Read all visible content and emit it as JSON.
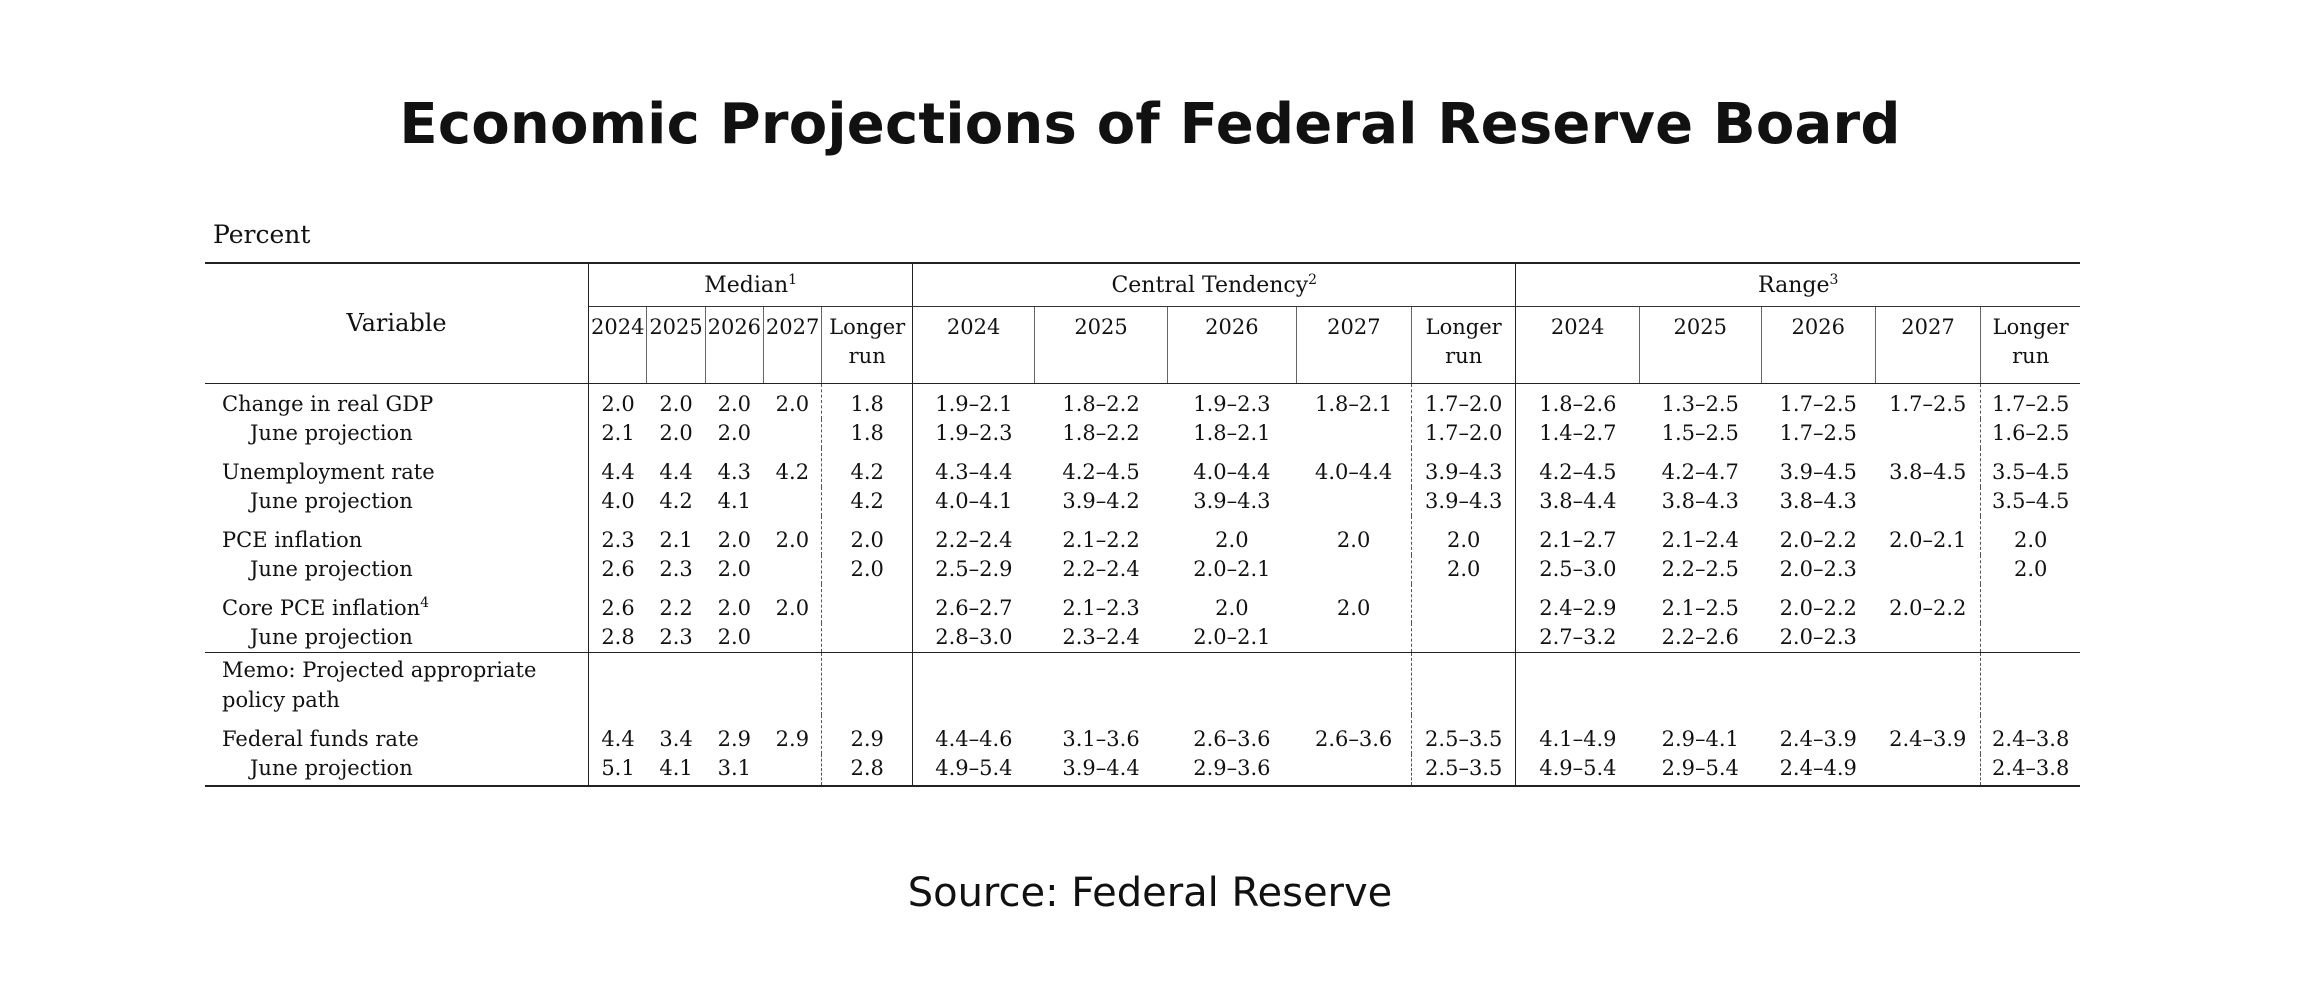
{
  "title": "Economic Projections of Federal Reserve Board",
  "units": "Percent",
  "source": "Source: Federal Reserve",
  "header": {
    "variable": "Variable",
    "groups": [
      {
        "label": "Median",
        "note": "1"
      },
      {
        "label": "Central Tendency",
        "note": "2"
      },
      {
        "label": "Range",
        "note": "3"
      }
    ],
    "years": [
      "2024",
      "2025",
      "2026",
      "2027"
    ],
    "longer_run": [
      "Longer",
      "run"
    ]
  },
  "rows": [
    {
      "label": "Change in real GDP",
      "note": "",
      "median": [
        "2.0",
        "2.0",
        "2.0",
        "2.0",
        "1.8"
      ],
      "central": [
        "1.9–2.1",
        "1.8–2.2",
        "1.9–2.3",
        "1.8–2.1",
        "1.7–2.0"
      ],
      "range": [
        "1.8–2.6",
        "1.3–2.5",
        "1.7–2.5",
        "1.7–2.5",
        "1.7–2.5"
      ]
    },
    {
      "label": "June projection",
      "note": "",
      "median": [
        "2.1",
        "2.0",
        "2.0",
        "",
        "1.8"
      ],
      "central": [
        "1.9–2.3",
        "1.8–2.2",
        "1.8–2.1",
        "",
        "1.7–2.0"
      ],
      "range": [
        "1.4–2.7",
        "1.5–2.5",
        "1.7–2.5",
        "",
        "1.6–2.5"
      ]
    },
    {
      "label": "Unemployment rate",
      "note": "",
      "median": [
        "4.4",
        "4.4",
        "4.3",
        "4.2",
        "4.2"
      ],
      "central": [
        "4.3–4.4",
        "4.2–4.5",
        "4.0–4.4",
        "4.0–4.4",
        "3.9–4.3"
      ],
      "range": [
        "4.2–4.5",
        "4.2–4.7",
        "3.9–4.5",
        "3.8–4.5",
        "3.5–4.5"
      ]
    },
    {
      "label": "June projection",
      "note": "",
      "median": [
        "4.0",
        "4.2",
        "4.1",
        "",
        "4.2"
      ],
      "central": [
        "4.0–4.1",
        "3.9–4.2",
        "3.9–4.3",
        "",
        "3.9–4.3"
      ],
      "range": [
        "3.8–4.4",
        "3.8–4.3",
        "3.8–4.3",
        "",
        "3.5–4.5"
      ]
    },
    {
      "label": "PCE inflation",
      "note": "",
      "median": [
        "2.3",
        "2.1",
        "2.0",
        "2.0",
        "2.0"
      ],
      "central": [
        "2.2–2.4",
        "2.1–2.2",
        "2.0",
        "2.0",
        "2.0"
      ],
      "range": [
        "2.1–2.7",
        "2.1–2.4",
        "2.0–2.2",
        "2.0–2.1",
        "2.0"
      ]
    },
    {
      "label": "June projection",
      "note": "",
      "median": [
        "2.6",
        "2.3",
        "2.0",
        "",
        "2.0"
      ],
      "central": [
        "2.5–2.9",
        "2.2–2.4",
        "2.0–2.1",
        "",
        "2.0"
      ],
      "range": [
        "2.5–3.0",
        "2.2–2.5",
        "2.0–2.3",
        "",
        "2.0"
      ]
    },
    {
      "label": "Core PCE inflation",
      "note": "4",
      "median": [
        "2.6",
        "2.2",
        "2.0",
        "2.0",
        ""
      ],
      "central": [
        "2.6–2.7",
        "2.1–2.3",
        "2.0",
        "2.0",
        ""
      ],
      "range": [
        "2.4–2.9",
        "2.1–2.5",
        "2.0–2.2",
        "2.0–2.2",
        ""
      ]
    },
    {
      "label": "June projection",
      "note": "",
      "median": [
        "2.8",
        "2.3",
        "2.0",
        "",
        ""
      ],
      "central": [
        "2.8–3.0",
        "2.3–2.4",
        "2.0–2.1",
        "",
        ""
      ],
      "range": [
        "2.7–3.2",
        "2.2–2.6",
        "2.0–2.3",
        "",
        ""
      ]
    },
    {
      "label": "Memo: Projected appropriate policy path",
      "note": "",
      "median": [
        "",
        "",
        "",
        "",
        ""
      ],
      "central": [
        "",
        "",
        "",
        "",
        ""
      ],
      "range": [
        "",
        "",
        "",
        "",
        ""
      ]
    },
    {
      "label": "Federal funds rate",
      "note": "",
      "median": [
        "4.4",
        "3.4",
        "2.9",
        "2.9",
        "2.9"
      ],
      "central": [
        "4.4–4.6",
        "3.1–3.6",
        "2.6–3.6",
        "2.6–3.6",
        "2.5–3.5"
      ],
      "range": [
        "4.1–4.9",
        "2.9–4.1",
        "2.4–3.9",
        "2.4–3.9",
        "2.4–3.8"
      ]
    },
    {
      "label": "June projection",
      "note": "",
      "median": [
        "5.1",
        "4.1",
        "3.1",
        "",
        "2.8"
      ],
      "central": [
        "4.9–5.4",
        "3.9–4.4",
        "2.9–3.6",
        "",
        "2.5–3.5"
      ],
      "range": [
        "4.9–5.4",
        "2.9–5.4",
        "2.4–4.9",
        "",
        "2.4–3.8"
      ]
    }
  ]
}
